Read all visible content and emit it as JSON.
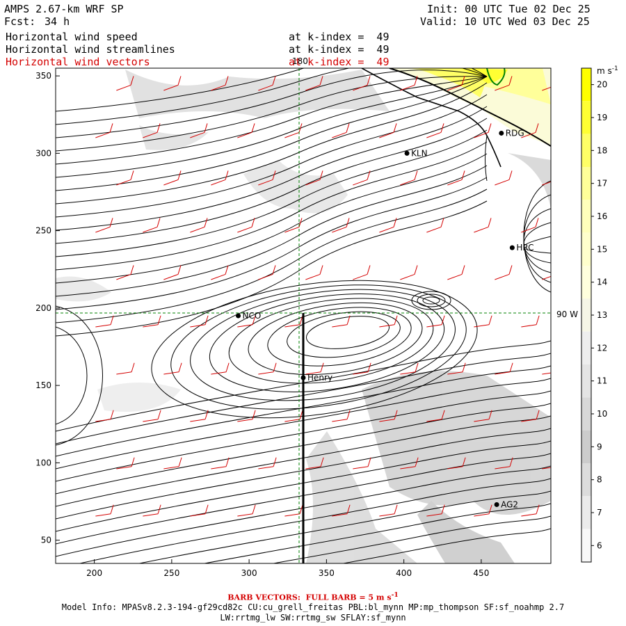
{
  "header": {
    "model": "AMPS 2.67-km WRF SP",
    "fcst_label": "Fcst:",
    "fcst_value": "34 h",
    "init": "Init: 00 UTC Tue 02 Dec 25",
    "valid": "Valid: 10 UTC Wed 03 Dec 25",
    "fields": [
      {
        "name": "Horizontal wind speed",
        "level": "at k-index =  49"
      },
      {
        "name": "Horizontal wind streamlines",
        "level": "at k-index =  49"
      },
      {
        "name": "Horizontal wind vectors",
        "level": "at k-index =  49"
      }
    ],
    "vector_color": "#d40000"
  },
  "map": {
    "x_ticks": [
      "200",
      "250",
      "300",
      "350",
      "400",
      "450"
    ],
    "y_ticks": [
      "350",
      "300",
      "250",
      "200",
      "150",
      "100",
      "50"
    ],
    "x_range": [
      175,
      495
    ],
    "y_range": [
      35,
      355
    ],
    "meridian_label": "180",
    "parallel_label": "90 W",
    "stations": [
      {
        "name": "KLN",
        "x": 402,
        "y": 300
      },
      {
        "name": "RDG",
        "x": 463,
        "y": 313
      },
      {
        "name": "HRC",
        "x": 470,
        "y": 239
      },
      {
        "name": "NCO",
        "x": 293,
        "y": 195
      },
      {
        "name": "Henry",
        "x": 335,
        "y": 155
      },
      {
        "name": "AG2",
        "x": 460,
        "y": 73
      }
    ],
    "cross_section_x": 335
  },
  "colorbar": {
    "unit": "m s",
    "unit_exp": "-1",
    "levels": [
      "20",
      "19",
      "18",
      "17",
      "16",
      "15",
      "14",
      "13",
      "12",
      "11",
      "10",
      "9",
      "8",
      "7",
      "6"
    ],
    "colors": [
      "#ffff00",
      "#ffff33",
      "#ffff66",
      "#ffff99",
      "#ffffbb",
      "#ffffcc",
      "#ffffdd",
      "#f6f6e6",
      "#eeeeee",
      "#e4e4e4",
      "#d8d8d8",
      "#cccccc",
      "#dcdcdc",
      "#ebebeb",
      "#f8f8f8"
    ]
  },
  "footer": {
    "barb": "BARB VECTORS:  FULL BARB = 5 m s",
    "barb_exp": "-1",
    "model_info": "Model Info: MPASv8.2.3-194-gf29cd82c CU:cu_grell_freitas PBL:bl_mynn MP:mp_thompson SF:sf_noahmp 2.7",
    "model_info2": "LW:rrtmg_lw SW:rrtmg_sw SFLAY:sf_mynn"
  }
}
